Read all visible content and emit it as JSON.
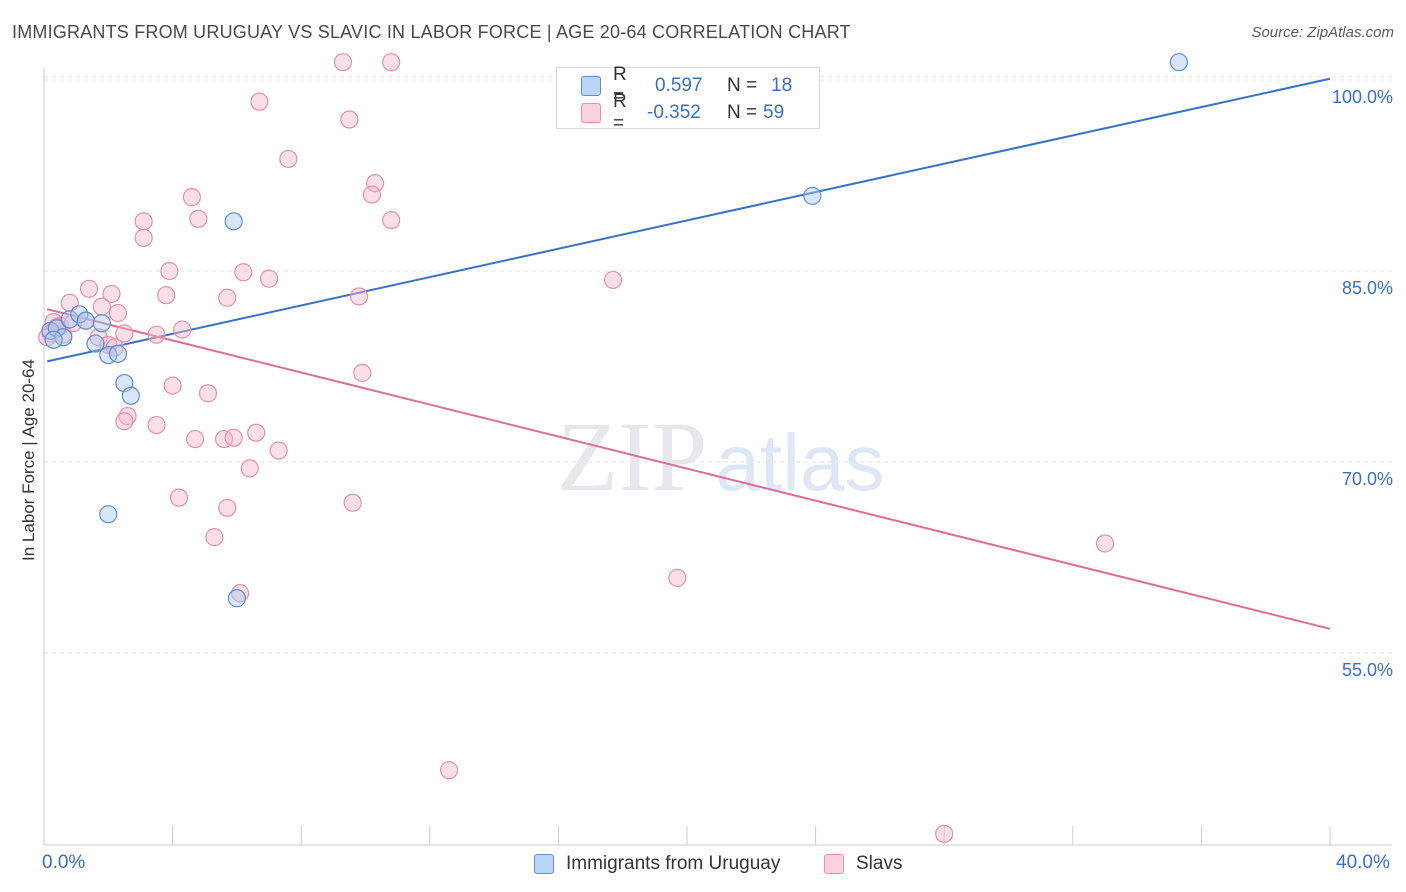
{
  "title": "IMMIGRANTS FROM URUGUAY VS SLAVIC IN LABOR FORCE | AGE 20-64 CORRELATION CHART",
  "source": "Source: ZipAtlas.com",
  "watermark": {
    "zip": "ZIP",
    "atlas": "atlas"
  },
  "colors": {
    "blue_fill": "#a8c8f0",
    "blue_stroke": "#5b8fd6",
    "blue_line": "#3572c8",
    "pink_fill": "#f7b8cb",
    "pink_stroke": "#e890ab",
    "pink_line": "#e06b96",
    "axis_text": "#3a6fc9",
    "grid": "#dde1e6"
  },
  "legend": {
    "rows": [
      {
        "r_label": "R =",
        "r_value": "0.597",
        "n_label": "N =",
        "n_value": "18"
      },
      {
        "r_label": "R =",
        "r_value": "-0.352",
        "n_label": "N =",
        "n_value": "59"
      }
    ]
  },
  "bottom_legend": {
    "series1": "Immigrants from Uruguay",
    "series2": "Slavs"
  },
  "x_axis": {
    "min_label": "0.0%",
    "max_label": "40.0%"
  },
  "chart_data": {
    "type": "scatter",
    "title": "IMMIGRANTS FROM URUGUAY VS SLAVIC IN LABOR FORCE | AGE 20-64 CORRELATION CHART",
    "xlabel": "",
    "ylabel": "In Labor Force | Age 20-64",
    "xlim": [
      0,
      40
    ],
    "ylim": [
      39.5,
      101.5
    ],
    "y_ticks": [
      55,
      70,
      85,
      100
    ],
    "y_tick_labels": [
      "55.0%",
      "70.0%",
      "85.0%",
      "100.0%"
    ],
    "series": [
      {
        "name": "Immigrants from Uruguay",
        "R": 0.597,
        "N": 18,
        "trend": [
          [
            0.1,
            77.9
          ],
          [
            40,
            100.1
          ]
        ],
        "points": [
          [
            0.2,
            80.3
          ],
          [
            0.4,
            80.5
          ],
          [
            0.6,
            79.8
          ],
          [
            0.8,
            81.2
          ],
          [
            1.1,
            81.6
          ],
          [
            1.3,
            81.1
          ],
          [
            1.8,
            80.9
          ],
          [
            1.6,
            79.3
          ],
          [
            2.0,
            78.4
          ],
          [
            2.3,
            78.5
          ],
          [
            2.5,
            76.2
          ],
          [
            2.7,
            75.2
          ],
          [
            2.0,
            65.9
          ],
          [
            5.9,
            88.9
          ],
          [
            6.0,
            59.3
          ],
          [
            23.9,
            90.9
          ],
          [
            35.3,
            101.4
          ],
          [
            0.3,
            79.6
          ]
        ]
      },
      {
        "name": "Slavs",
        "R": -0.352,
        "N": 59,
        "trend": [
          [
            0.1,
            82.0
          ],
          [
            40,
            56.9
          ]
        ],
        "points": [
          [
            9.3,
            101.4
          ],
          [
            10.8,
            101.4
          ],
          [
            6.7,
            98.3
          ],
          [
            9.5,
            96.9
          ],
          [
            7.6,
            93.8
          ],
          [
            10.3,
            91.9
          ],
          [
            10.2,
            91.0
          ],
          [
            4.6,
            90.8
          ],
          [
            4.8,
            89.1
          ],
          [
            10.8,
            89.0
          ],
          [
            3.1,
            88.9
          ],
          [
            3.1,
            87.6
          ],
          [
            3.9,
            85.0
          ],
          [
            6.2,
            84.9
          ],
          [
            7.0,
            84.4
          ],
          [
            17.7,
            84.3
          ],
          [
            1.4,
            83.6
          ],
          [
            2.1,
            83.2
          ],
          [
            3.8,
            83.1
          ],
          [
            5.7,
            82.9
          ],
          [
            9.8,
            83.0
          ],
          [
            0.8,
            82.5
          ],
          [
            1.8,
            82.2
          ],
          [
            2.3,
            81.7
          ],
          [
            1.3,
            81.1
          ],
          [
            0.3,
            81.0
          ],
          [
            0.5,
            80.7
          ],
          [
            0.9,
            80.9
          ],
          [
            2.5,
            80.1
          ],
          [
            3.5,
            80.0
          ],
          [
            4.3,
            80.4
          ],
          [
            0.2,
            80.1
          ],
          [
            0.6,
            80.0
          ],
          [
            1.7,
            79.8
          ],
          [
            2.0,
            79.2
          ],
          [
            2.2,
            79.0
          ],
          [
            0.1,
            79.8
          ],
          [
            9.9,
            77.0
          ],
          [
            4.0,
            76.0
          ],
          [
            5.1,
            75.4
          ],
          [
            2.6,
            73.6
          ],
          [
            2.5,
            73.2
          ],
          [
            3.5,
            72.9
          ],
          [
            4.7,
            71.8
          ],
          [
            5.6,
            71.8
          ],
          [
            5.9,
            71.9
          ],
          [
            6.6,
            72.3
          ],
          [
            7.3,
            70.9
          ],
          [
            6.4,
            69.5
          ],
          [
            4.2,
            67.2
          ],
          [
            5.7,
            66.4
          ],
          [
            9.6,
            66.8
          ],
          [
            5.3,
            64.1
          ],
          [
            33.0,
            63.6
          ],
          [
            19.7,
            60.9
          ],
          [
            6.1,
            59.7
          ],
          [
            12.6,
            45.8
          ],
          [
            28.0,
            40.8
          ],
          [
            0.4,
            80.6
          ]
        ]
      }
    ]
  }
}
